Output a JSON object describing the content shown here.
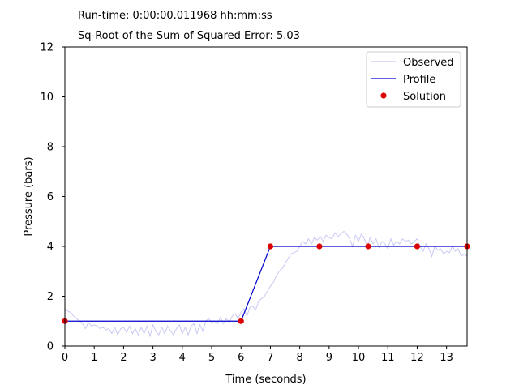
{
  "chart_data": {
    "type": "line",
    "annotations": [
      "Run-time: 0:00:00.011968 hh:mm:ss",
      "Sq-Root of the Sum of Squared Error: 5.03"
    ],
    "xlabel": "Time (seconds)",
    "ylabel": "Pressure (bars)",
    "xlim": [
      0,
      13.7
    ],
    "ylim": [
      0,
      12
    ],
    "xticks": [
      0,
      1,
      2,
      3,
      4,
      5,
      6,
      7,
      8,
      9,
      10,
      11,
      12,
      13
    ],
    "yticks": [
      0,
      2,
      4,
      6,
      8,
      10,
      12
    ],
    "grid": false,
    "legend_position": "top-right",
    "series": [
      {
        "name": "Observed",
        "color": "#c8c8f4",
        "x": [
          0,
          0.1,
          0.2,
          0.3,
          0.4,
          0.5,
          0.6,
          0.7,
          0.8,
          0.9,
          1.0,
          1.1,
          1.2,
          1.3,
          1.4,
          1.5,
          1.6,
          1.7,
          1.8,
          1.9,
          2.0,
          2.1,
          2.2,
          2.3,
          2.4,
          2.5,
          2.6,
          2.7,
          2.8,
          2.9,
          3.0,
          3.1,
          3.2,
          3.3,
          3.4,
          3.5,
          3.6,
          3.7,
          3.8,
          3.9,
          4.0,
          4.1,
          4.2,
          4.3,
          4.4,
          4.5,
          4.6,
          4.7,
          4.8,
          4.9,
          5.0,
          5.1,
          5.2,
          5.3,
          5.4,
          5.5,
          5.6,
          5.7,
          5.8,
          5.9,
          6.0,
          6.1,
          6.2,
          6.3,
          6.4,
          6.5,
          6.6,
          6.7,
          6.8,
          6.9,
          7.0,
          7.1,
          7.2,
          7.3,
          7.4,
          7.5,
          7.6,
          7.7,
          7.8,
          7.9,
          8.0,
          8.1,
          8.2,
          8.3,
          8.4,
          8.5,
          8.6,
          8.7,
          8.8,
          8.9,
          9.0,
          9.1,
          9.2,
          9.3,
          9.4,
          9.5,
          9.6,
          9.7,
          9.8,
          9.9,
          10.0,
          10.1,
          10.2,
          10.3,
          10.4,
          10.5,
          10.6,
          10.7,
          10.8,
          10.9,
          11.0,
          11.1,
          11.2,
          11.3,
          11.4,
          11.5,
          11.6,
          11.7,
          11.8,
          11.9,
          12.0,
          12.1,
          12.2,
          12.3,
          12.4,
          12.5,
          12.6,
          12.7,
          12.8,
          12.9,
          13.0,
          13.1,
          13.2,
          13.3,
          13.4,
          13.5,
          13.6,
          13.7
        ],
        "y": [
          1.5,
          1.4,
          1.35,
          1.2,
          1.1,
          1.0,
          0.9,
          0.7,
          0.95,
          0.8,
          0.85,
          0.8,
          0.7,
          0.75,
          0.65,
          0.7,
          0.5,
          0.75,
          0.45,
          0.7,
          0.75,
          0.55,
          0.8,
          0.5,
          0.7,
          0.45,
          0.75,
          0.5,
          0.8,
          0.4,
          0.85,
          0.6,
          0.45,
          0.75,
          0.5,
          0.8,
          0.6,
          0.45,
          0.7,
          0.85,
          0.5,
          0.75,
          0.45,
          0.8,
          0.9,
          0.5,
          0.85,
          0.6,
          1.0,
          1.1,
          0.95,
          1.0,
          0.9,
          1.15,
          0.9,
          1.1,
          0.95,
          1.2,
          1.3,
          1.1,
          1.35,
          1.5,
          1.2,
          1.55,
          1.6,
          1.45,
          1.8,
          1.9,
          2.0,
          2.2,
          2.4,
          2.55,
          2.8,
          3.0,
          3.1,
          3.3,
          3.5,
          3.7,
          3.75,
          3.8,
          4.0,
          4.2,
          4.1,
          4.3,
          4.1,
          4.35,
          4.25,
          4.4,
          4.2,
          4.45,
          4.35,
          4.3,
          4.55,
          4.4,
          4.5,
          4.6,
          4.5,
          4.3,
          4.0,
          4.45,
          4.2,
          4.5,
          4.3,
          4.0,
          4.35,
          4.1,
          4.3,
          3.95,
          4.2,
          4.1,
          3.9,
          4.3,
          4.05,
          4.2,
          4.1,
          4.3,
          4.2,
          4.25,
          4.1,
          4.2,
          4.3,
          4.0,
          3.8,
          4.1,
          3.9,
          3.6,
          4.0,
          3.85,
          3.9,
          3.7,
          3.8,
          3.75,
          4.0,
          3.8,
          3.9,
          3.6,
          3.7,
          3.6
        ]
      },
      {
        "name": "Profile",
        "color": "#0000cc",
        "x": [
          0,
          6,
          7,
          8.67,
          10.33,
          12,
          13.7
        ],
        "y": [
          1,
          1,
          4,
          4,
          4,
          4,
          4
        ]
      },
      {
        "name": "Solution",
        "color": "#dd0000",
        "marker": "circle",
        "x": [
          0,
          6,
          7,
          8.67,
          10.33,
          12,
          13.7
        ],
        "y": [
          1,
          1,
          4,
          4,
          4,
          4,
          4
        ]
      }
    ]
  }
}
